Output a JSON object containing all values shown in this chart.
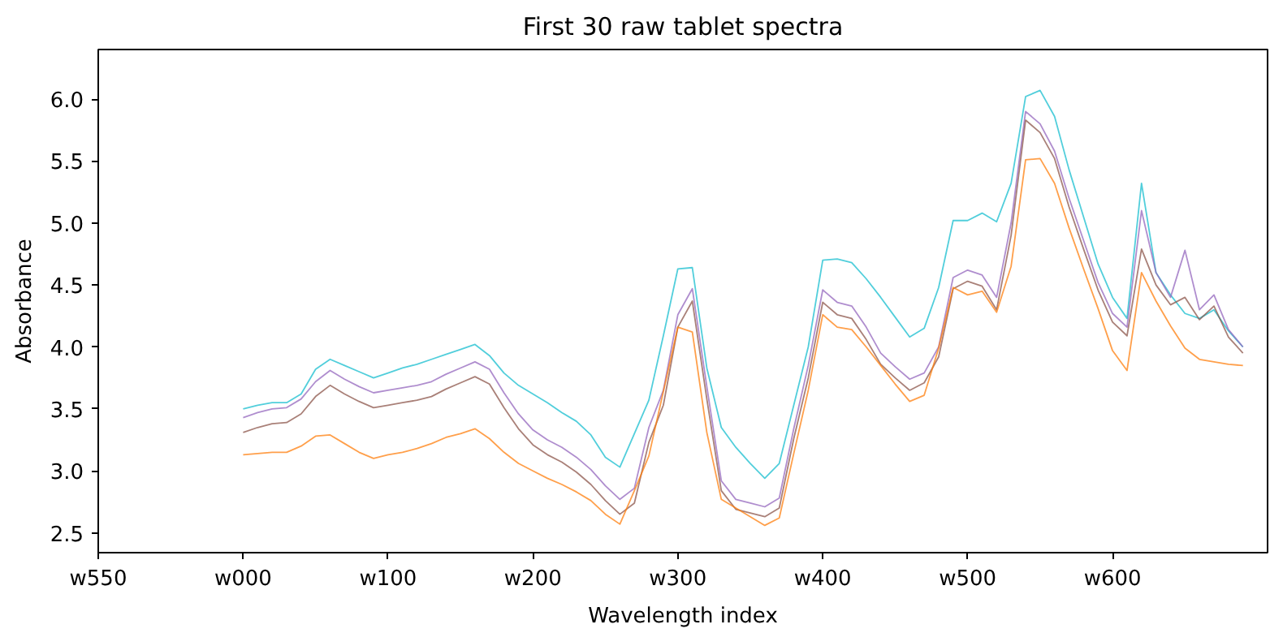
{
  "chart_data": {
    "type": "line",
    "title": "First 30 raw tablet spectra",
    "xlabel": "Wavelength index",
    "ylabel": "Absorbance",
    "categories": [
      "w550",
      null,
      null,
      null,
      null,
      null,
      null,
      null,
      null,
      null,
      "w000",
      null,
      null,
      null,
      null,
      null,
      null,
      null,
      null,
      null,
      "w100",
      null,
      null,
      null,
      null,
      null,
      null,
      null,
      null,
      null,
      "w200",
      null,
      null,
      null,
      null,
      null,
      null,
      null,
      null,
      null,
      "w300",
      null,
      null,
      null,
      null,
      null,
      null,
      null,
      null,
      null,
      "w400",
      null,
      null,
      null,
      null,
      null,
      null,
      null,
      null,
      null,
      "w500",
      null,
      null,
      null,
      null,
      null,
      null,
      null,
      null,
      null,
      "w600",
      null,
      null,
      null,
      null,
      null,
      null,
      null,
      null,
      null,
      null
    ],
    "ylim": [
      2.34,
      6.4
    ],
    "yticks": [
      2.5,
      {
        "value": 3,
        "label": "3.0"
      },
      3.5,
      {
        "value": 4,
        "label": "4.0"
      },
      4.5,
      {
        "value": 5,
        "label": "5.0"
      },
      5.5,
      {
        "value": 6,
        "label": "6.0"
      }
    ],
    "grid": false,
    "marker": "none",
    "line_style": "solid",
    "series": [
      {
        "color": "#17becf",
        "values": [
          null,
          null,
          null,
          null,
          null,
          null,
          null,
          null,
          null,
          null,
          3.5,
          3.53,
          3.55,
          3.55,
          3.62,
          3.82,
          3.9,
          3.85,
          3.8,
          3.75,
          3.79,
          3.83,
          3.86,
          3.9,
          3.94,
          3.98,
          4.02,
          3.93,
          3.79,
          3.69,
          3.62,
          3.55,
          3.47,
          3.4,
          3.29,
          3.11,
          3.03,
          3.3,
          3.57,
          4.09,
          4.63,
          4.64,
          3.83,
          3.35,
          3.19,
          3.06,
          2.94,
          3.06,
          3.53,
          4.0,
          4.7,
          4.71,
          4.68,
          4.55,
          4.4,
          4.24,
          4.08,
          4.15,
          4.48,
          5.02,
          5.02,
          5.08,
          5.01,
          5.32,
          6.02,
          6.07,
          5.86,
          5.43,
          5.05,
          4.67,
          4.4,
          4.23,
          5.32,
          4.6,
          4.42,
          4.27,
          4.23,
          4.3,
          4.13,
          4.0,
          null
        ]
      },
      {
        "color": "#9467bd",
        "values": [
          null,
          null,
          null,
          null,
          null,
          null,
          null,
          null,
          null,
          null,
          3.43,
          3.47,
          3.5,
          3.51,
          3.58,
          3.72,
          3.81,
          3.74,
          3.68,
          3.63,
          3.65,
          3.67,
          3.69,
          3.72,
          3.78,
          3.83,
          3.88,
          3.82,
          3.63,
          3.46,
          3.33,
          3.25,
          3.19,
          3.11,
          3.01,
          2.88,
          2.77,
          2.86,
          3.35,
          3.65,
          4.26,
          4.47,
          3.68,
          2.92,
          2.77,
          2.74,
          2.71,
          2.78,
          3.34,
          3.85,
          4.46,
          4.36,
          4.33,
          4.16,
          3.95,
          3.84,
          3.74,
          3.79,
          4.0,
          4.56,
          4.62,
          4.58,
          4.4,
          5.0,
          5.9,
          5.8,
          5.58,
          5.2,
          4.86,
          4.52,
          4.27,
          4.16,
          5.1,
          4.6,
          4.4,
          4.78,
          4.3,
          4.42,
          4.14,
          4.0,
          null
        ]
      },
      {
        "color": "#8c564b",
        "values": [
          null,
          null,
          null,
          null,
          null,
          null,
          null,
          null,
          null,
          null,
          3.31,
          3.35,
          3.38,
          3.39,
          3.46,
          3.6,
          3.69,
          3.62,
          3.56,
          3.51,
          3.53,
          3.55,
          3.57,
          3.6,
          3.66,
          3.71,
          3.76,
          3.7,
          3.51,
          3.34,
          3.21,
          3.13,
          3.07,
          2.99,
          2.89,
          2.76,
          2.65,
          2.74,
          3.23,
          3.53,
          4.16,
          4.37,
          3.58,
          2.84,
          2.69,
          2.66,
          2.63,
          2.7,
          3.26,
          3.75,
          4.36,
          4.26,
          4.23,
          4.06,
          3.86,
          3.75,
          3.65,
          3.71,
          3.92,
          4.47,
          4.53,
          4.49,
          4.3,
          4.9,
          5.83,
          5.73,
          5.52,
          5.13,
          4.79,
          4.46,
          4.2,
          4.09,
          4.79,
          4.5,
          4.34,
          4.4,
          4.22,
          4.33,
          4.08,
          3.95,
          null
        ]
      },
      {
        "color": "#ff7f0e",
        "values": [
          null,
          null,
          null,
          null,
          null,
          null,
          null,
          null,
          null,
          null,
          3.13,
          3.14,
          3.15,
          3.15,
          3.2,
          3.28,
          3.29,
          3.22,
          3.15,
          3.1,
          3.13,
          3.15,
          3.18,
          3.22,
          3.27,
          3.3,
          3.34,
          3.26,
          3.15,
          3.06,
          3.0,
          2.94,
          2.89,
          2.83,
          2.76,
          2.65,
          2.57,
          2.84,
          3.12,
          3.64,
          4.16,
          4.12,
          3.31,
          2.77,
          2.7,
          2.63,
          2.56,
          2.62,
          3.14,
          3.65,
          4.26,
          4.16,
          4.14,
          4.0,
          3.85,
          3.7,
          3.56,
          3.61,
          3.99,
          4.48,
          4.42,
          4.45,
          4.28,
          4.65,
          5.51,
          5.52,
          5.32,
          4.96,
          4.63,
          4.31,
          3.97,
          3.81,
          4.6,
          4.37,
          4.17,
          3.99,
          3.9,
          3.88,
          3.86,
          3.85,
          null
        ]
      }
    ]
  }
}
